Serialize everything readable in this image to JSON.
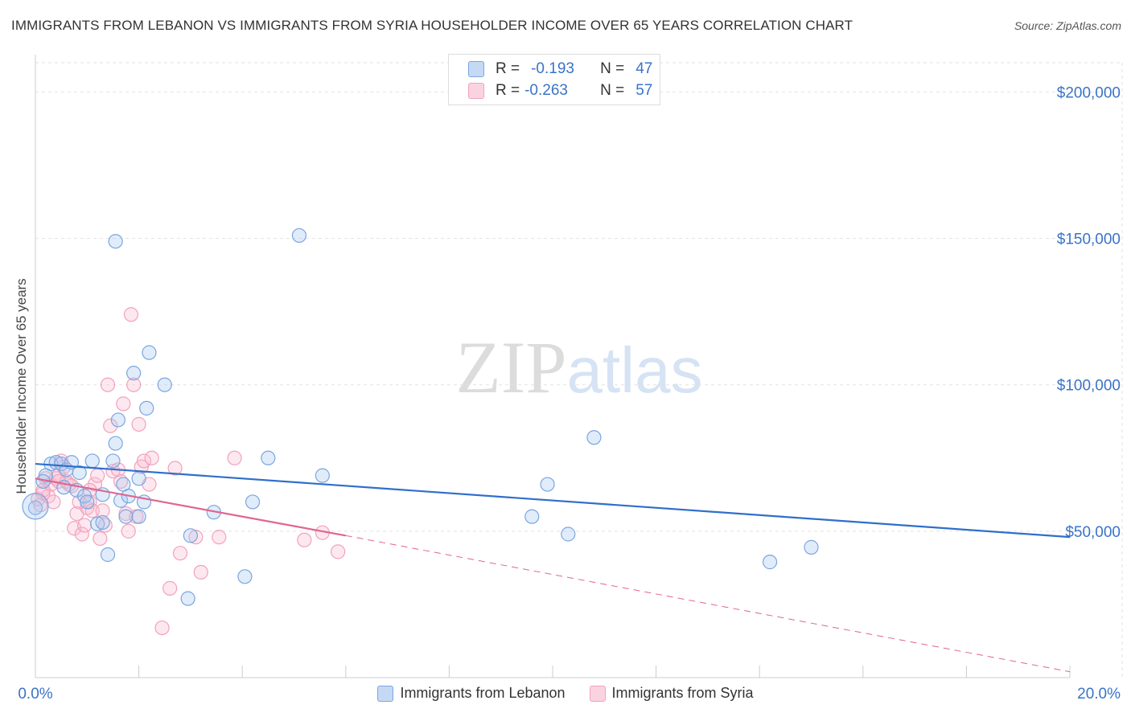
{
  "title": "IMMIGRANTS FROM LEBANON VS IMMIGRANTS FROM SYRIA HOUSEHOLDER INCOME OVER 65 YEARS CORRELATION CHART",
  "source": "Source: ZipAtlas.com",
  "watermark": "ZIPatlas",
  "colors": {
    "lebanon": "#7aa6e0",
    "lebanon_line": "#2f6fca",
    "syria": "#f1a2bd",
    "syria_line": "#e0668f",
    "axis_label": "#3a73c8"
  },
  "stats": [
    {
      "r_label": "R =",
      "r": "-0.193",
      "n_label": "N =",
      "n": "47"
    },
    {
      "r_label": "R =",
      "r": "-0.263",
      "n_label": "N =",
      "n": "57"
    }
  ],
  "chart_data": {
    "type": "scatter",
    "ylabel": "Householder Income Over 65 years",
    "xlim": [
      0,
      20
    ],
    "ylim": [
      0,
      210000
    ],
    "x_tick_labels": [
      "0.0%",
      "20.0%"
    ],
    "y_ticks": [
      50000,
      100000,
      150000,
      200000
    ],
    "y_tick_labels": [
      "$50,000",
      "$100,000",
      "$150,000",
      "$200,000"
    ],
    "grid": true,
    "legend_position": "bottom",
    "series": [
      {
        "name": "Immigrants from Lebanon",
        "points": [
          [
            0.0,
            58000
          ],
          [
            0.2,
            69000
          ],
          [
            0.3,
            73000
          ],
          [
            0.4,
            73500
          ],
          [
            0.5,
            73000
          ],
          [
            0.6,
            71000
          ],
          [
            0.7,
            73500
          ],
          [
            0.8,
            64000
          ],
          [
            0.85,
            70000
          ],
          [
            0.95,
            62000
          ],
          [
            1.1,
            74000
          ],
          [
            1.2,
            52500
          ],
          [
            1.3,
            53000
          ],
          [
            1.3,
            62500
          ],
          [
            1.4,
            42000
          ],
          [
            1.5,
            74000
          ],
          [
            1.55,
            80000
          ],
          [
            1.55,
            149000
          ],
          [
            1.6,
            88000
          ],
          [
            1.65,
            60500
          ],
          [
            1.75,
            55000
          ],
          [
            1.8,
            62000
          ],
          [
            1.9,
            104000
          ],
          [
            2.0,
            55000
          ],
          [
            2.0,
            68000
          ],
          [
            2.1,
            60000
          ],
          [
            2.15,
            92000
          ],
          [
            2.2,
            111000
          ],
          [
            2.5,
            100000
          ],
          [
            2.95,
            27000
          ],
          [
            3.0,
            48500
          ],
          [
            3.45,
            56500
          ],
          [
            4.05,
            34500
          ],
          [
            4.2,
            60000
          ],
          [
            4.5,
            75000
          ],
          [
            5.1,
            151000
          ],
          [
            5.55,
            69000
          ],
          [
            9.6,
            55000
          ],
          [
            9.9,
            66000
          ],
          [
            10.3,
            49000
          ],
          [
            10.8,
            82000
          ],
          [
            14.2,
            39500
          ],
          [
            15.0,
            44500
          ],
          [
            0.15,
            67000
          ],
          [
            0.55,
            65000
          ],
          [
            1.0,
            60000
          ],
          [
            1.7,
            66000
          ]
        ]
      },
      {
        "name": "Immigrants from Syria",
        "points": [
          [
            0.05,
            61000
          ],
          [
            0.1,
            59000
          ],
          [
            0.15,
            63000
          ],
          [
            0.2,
            68000
          ],
          [
            0.25,
            62000
          ],
          [
            0.3,
            66000
          ],
          [
            0.35,
            60000
          ],
          [
            0.4,
            68000
          ],
          [
            0.45,
            69000
          ],
          [
            0.5,
            74000
          ],
          [
            0.55,
            72000
          ],
          [
            0.6,
            67000
          ],
          [
            0.65,
            66000
          ],
          [
            0.7,
            65500
          ],
          [
            0.75,
            51000
          ],
          [
            0.8,
            56000
          ],
          [
            0.85,
            60000
          ],
          [
            0.9,
            49000
          ],
          [
            1.0,
            58000
          ],
          [
            1.05,
            60000
          ],
          [
            1.1,
            57000
          ],
          [
            1.15,
            66000
          ],
          [
            1.2,
            69000
          ],
          [
            1.25,
            47500
          ],
          [
            1.3,
            57000
          ],
          [
            1.35,
            52000
          ],
          [
            1.4,
            100000
          ],
          [
            1.45,
            86000
          ],
          [
            1.5,
            70500
          ],
          [
            1.6,
            71000
          ],
          [
            1.65,
            67000
          ],
          [
            1.7,
            93500
          ],
          [
            1.75,
            56000
          ],
          [
            1.8,
            50000
          ],
          [
            1.85,
            124000
          ],
          [
            1.9,
            100000
          ],
          [
            1.95,
            55000
          ],
          [
            2.0,
            86500
          ],
          [
            2.05,
            72000
          ],
          [
            2.1,
            74000
          ],
          [
            2.2,
            66000
          ],
          [
            2.25,
            75000
          ],
          [
            2.45,
            17000
          ],
          [
            2.6,
            30500
          ],
          [
            2.7,
            71500
          ],
          [
            2.8,
            42500
          ],
          [
            3.1,
            48000
          ],
          [
            3.2,
            36000
          ],
          [
            3.55,
            48000
          ],
          [
            3.85,
            75000
          ],
          [
            5.2,
            47000
          ],
          [
            5.55,
            49500
          ],
          [
            5.85,
            43000
          ],
          [
            0.95,
            52000
          ],
          [
            0.45,
            67000
          ],
          [
            1.05,
            64000
          ],
          [
            0.15,
            64000
          ]
        ]
      }
    ],
    "trend_lines": [
      {
        "series": "Immigrants from Lebanon",
        "x": [
          0,
          20
        ],
        "y": [
          73000,
          48000
        ],
        "style": "solid"
      },
      {
        "series": "Immigrants from Syria",
        "x": [
          0,
          6.0
        ],
        "y": [
          68000,
          48500
        ],
        "style": "solid"
      },
      {
        "series": "Immigrants from Syria",
        "x": [
          6.0,
          20
        ],
        "y": [
          48500,
          2000
        ],
        "style": "dashed"
      }
    ]
  }
}
